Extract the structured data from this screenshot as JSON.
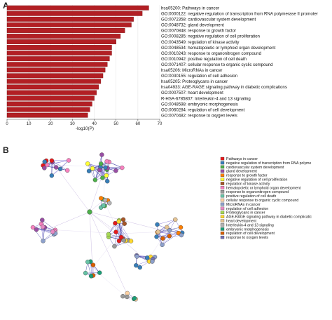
{
  "panel_a": {
    "label": "A",
    "chart_data": {
      "type": "bar",
      "orientation": "horizontal",
      "xlabel": "-log10(P)",
      "xlim": [
        0,
        70
      ],
      "xticks": [
        "0",
        "10",
        "20",
        "30",
        "40",
        "50",
        "60",
        "70"
      ],
      "grid": true,
      "categories": [
        "hsa05200: Pathways in cancer",
        "GO:0000122: negative regulation of transcription from RNA polymerase II promoter",
        "GO:0072358: cardiovascular system development",
        "GO:0048732: gland development",
        "GO:0070848: response to growth factor",
        "GO:0008285: negative regulation of cell proliferation",
        "GO:0043549: regulation of kinase activity",
        "GO:0048534: hematopoietic or lymphoid organ development",
        "GO:0010243: response to organonitrogen compound",
        "GO:0010942: positive regulation of cell death",
        "GO:0071407: cellular response to organic cyclic compound",
        "hsa05206: MicroRNAs in cancer",
        "GO:0030155: regulation of cell adhesion",
        "hsa05205: Proteoglycans in cancer",
        "hsa04933: AGE-RAGE signaling pathway in diabetic complications",
        "GO:0007507: heart development",
        "R-HSA-6785807: Interleukin-4 and 13 signaling",
        "GO:0048598: embryonic morphogenesis",
        "GO:0060284: regulation of cell development",
        "GO:0070482: response to oxygen levels"
      ],
      "values": [
        65,
        62,
        58,
        57,
        54,
        52,
        50,
        48,
        48,
        47,
        46,
        45,
        44,
        43,
        42,
        41,
        40,
        39,
        38,
        37
      ],
      "bar_color": "#b21f24"
    }
  },
  "panel_b": {
    "label": "B",
    "legend": [
      {
        "label": "Pathways in cancer",
        "color": "#e41a1c"
      },
      {
        "label": "negative regulation of transcription from RNA polyme",
        "color": "#377eb8"
      },
      {
        "label": "cardiovascular system development",
        "color": "#4daf4a"
      },
      {
        "label": "gland development",
        "color": "#984ea3"
      },
      {
        "label": "response to growth factor",
        "color": "#ff7f00"
      },
      {
        "label": "negative regulation of cell proliferation",
        "color": "#ffff33"
      },
      {
        "label": "regulation of kinase activity",
        "color": "#a65628"
      },
      {
        "label": "hematopoietic or lymphoid organ development",
        "color": "#f781bf"
      },
      {
        "label": "response to organonitrogen compound",
        "color": "#999999"
      },
      {
        "label": "positive regulation of cell death",
        "color": "#66c2a5"
      },
      {
        "label": "cellular response to organic cyclic compound",
        "color": "#fdd0a2"
      },
      {
        "label": "MicroRNAs in cancer",
        "color": "#8da0cb"
      },
      {
        "label": "regulation of cell adhesion",
        "color": "#e78ac3"
      },
      {
        "label": "Proteoglycans in cancer",
        "color": "#a6d854"
      },
      {
        "label": "AGE-RAGE signaling pathway in diabetic complicatic",
        "color": "#ffd92f"
      },
      {
        "label": "heart development",
        "color": "#e5c494"
      },
      {
        "label": "Interleukin-4 and 13 signaling",
        "color": "#b3b3b3"
      },
      {
        "label": "embryonic morphogenesis",
        "color": "#1b9e77"
      },
      {
        "label": "regulation of cell development",
        "color": "#d95f02"
      },
      {
        "label": "response to oxygen levels",
        "color": "#7570b3"
      }
    ]
  }
}
